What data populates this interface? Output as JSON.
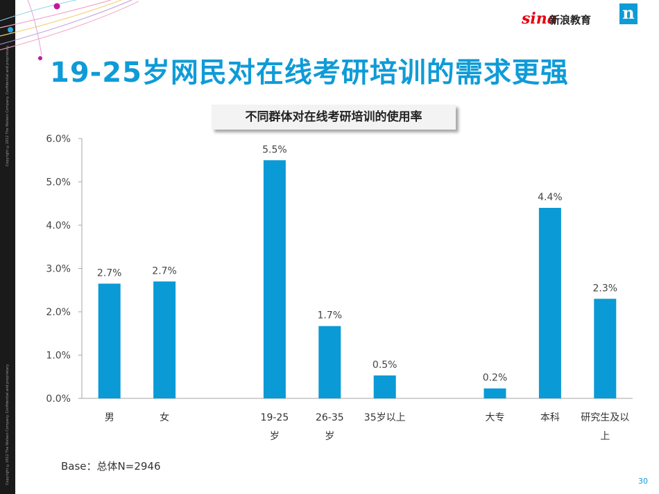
{
  "slide": {
    "title": "19-25岁网民对在线考研培训的需求更强",
    "logo_sina": "sina",
    "logo_sina_sub": "新浪教育",
    "logo_nielsen": "n",
    "base_note": "Base：总体N=2946",
    "page_number": "30",
    "copyright_1": "Copyright ©2012 The Nielsen Company. Confidential and proprietary.",
    "copyright_2": "Copyright ©2012 The Nielsen Company. Confidential and proprietary."
  },
  "colors": {
    "bar": "#0a9ad6",
    "title": "#0f9bd7",
    "axis": "#a6a6a6"
  },
  "chart_data": {
    "type": "bar",
    "title": "不同群体对在线考研培训的使用率",
    "xlabel": "",
    "ylabel": "",
    "ylim": [
      0,
      6
    ],
    "y_ticks": [
      "0.0%",
      "1.0%",
      "2.0%",
      "3.0%",
      "4.0%",
      "5.0%",
      "6.0%"
    ],
    "grid": false,
    "categories": [
      {
        "label": "男",
        "value": 2.65,
        "data_label": "2.7%"
      },
      {
        "label": "女",
        "value": 2.7,
        "data_label": "2.7%"
      },
      {
        "label": "",
        "value": null,
        "data_label": ""
      },
      {
        "label": "19-25岁",
        "value": 5.5,
        "data_label": "5.5%"
      },
      {
        "label": "26-35岁",
        "value": 1.67,
        "data_label": "1.7%"
      },
      {
        "label": "35岁以上",
        "value": 0.53,
        "data_label": "0.5%"
      },
      {
        "label": "",
        "value": null,
        "data_label": ""
      },
      {
        "label": "大专",
        "value": 0.23,
        "data_label": "0.2%"
      },
      {
        "label": "本科",
        "value": 4.4,
        "data_label": "4.4%"
      },
      {
        "label": "研究生及以上",
        "value": 2.3,
        "data_label": "2.3%"
      }
    ]
  }
}
